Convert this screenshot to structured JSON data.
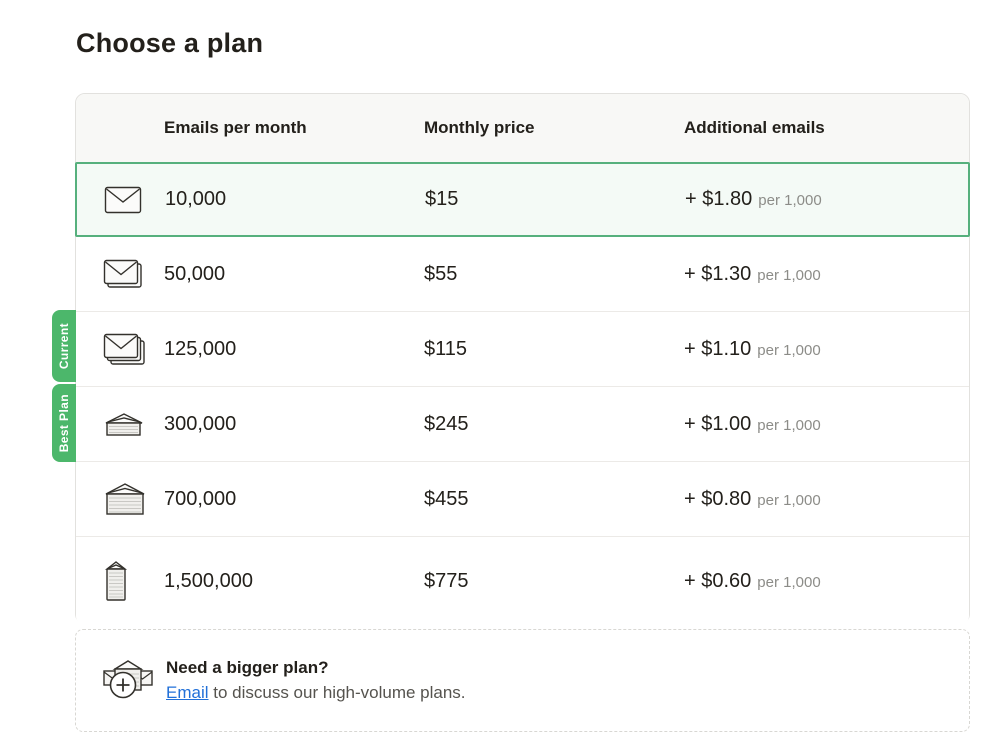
{
  "page": {
    "title": "Choose a plan"
  },
  "colors": {
    "badge_green": "#4cb76b",
    "selected_border": "#56b07d",
    "selected_bg": "#f4faf6",
    "link_blue": "#2170d8",
    "text_dark": "#23201b",
    "text_gray": "#8c8c88",
    "footer_text": "#55534e",
    "card_border": "#e2e1de",
    "header_bg": "#f8f8f6",
    "row_divider": "#eceae7",
    "dash_border": "#d8d7d3"
  },
  "table": {
    "columns": [
      "Emails per month",
      "Monthly price",
      "Additional emails"
    ],
    "rows": [
      {
        "icon": "envelope-single-icon",
        "emails": "10,000",
        "price": "$15",
        "additional_price": "+ $1.80",
        "additional_unit": "per 1,000",
        "selected": true
      },
      {
        "icon": "envelope-stack-2-icon",
        "emails": "50,000",
        "price": "$55",
        "additional_price": "+ $1.30",
        "additional_unit": "per 1,000",
        "selected": false
      },
      {
        "icon": "envelope-stack-3-icon",
        "emails": "125,000",
        "price": "$115",
        "additional_price": "+ $1.10",
        "additional_unit": "per 1,000",
        "selected": false
      },
      {
        "icon": "envelope-pile-small-icon",
        "emails": "300,000",
        "price": "$245",
        "additional_price": "+ $1.00",
        "additional_unit": "per 1,000",
        "selected": false
      },
      {
        "icon": "envelope-pile-large-icon",
        "emails": "700,000",
        "price": "$455",
        "additional_price": "+ $0.80",
        "additional_unit": "per 1,000",
        "selected": false
      },
      {
        "icon": "envelope-pile-tall-icon",
        "emails": "1,500,000",
        "price": "$775",
        "additional_price": "+ $0.60",
        "additional_unit": "per 1,000",
        "selected": false
      }
    ]
  },
  "badges": [
    {
      "label": "Current"
    },
    {
      "label": "Best Plan"
    }
  ],
  "footer": {
    "heading": "Need a bigger plan?",
    "link_label": "Email",
    "text_after_link": " to discuss our high-volume plans."
  }
}
